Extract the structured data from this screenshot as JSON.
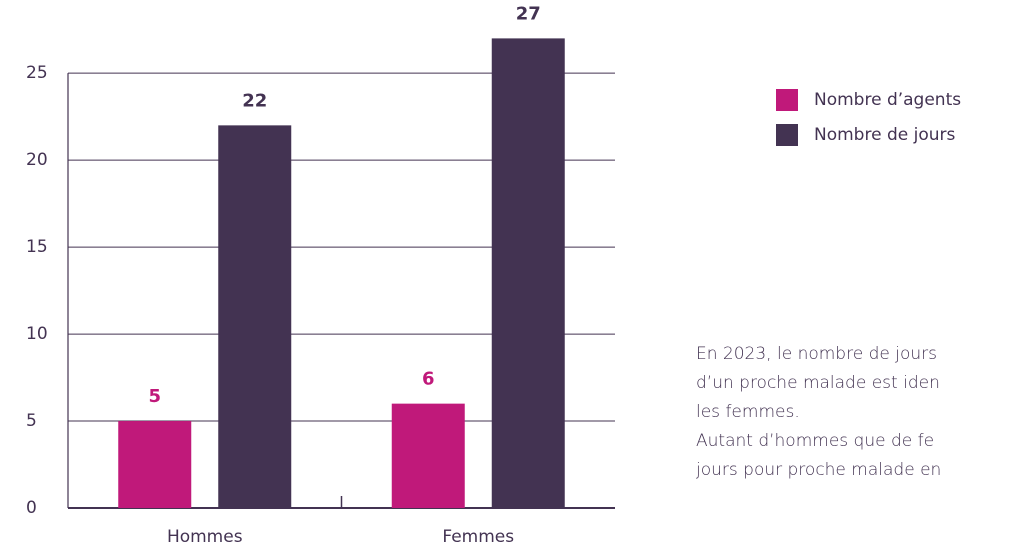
{
  "chart_data": {
    "type": "bar",
    "categories": [
      "Hommes",
      "Femmes"
    ],
    "series": [
      {
        "name": "Nombre d’agents",
        "color": "#c0197a",
        "values": [
          5,
          6
        ]
      },
      {
        "name": "Nombre de jours",
        "color": "#433352",
        "values": [
          22,
          27
        ]
      }
    ],
    "ylim": [
      0,
      28
    ],
    "yticks": [
      0,
      5,
      10,
      15,
      20,
      25
    ],
    "grid": true,
    "legend": "right"
  },
  "note": {
    "lines": [
      "En 2023, le nombre de jours",
      "d’un proche malade est iden",
      "les femmes.",
      "Autant d’hommes que de fe",
      "jours pour proche malade en"
    ]
  }
}
